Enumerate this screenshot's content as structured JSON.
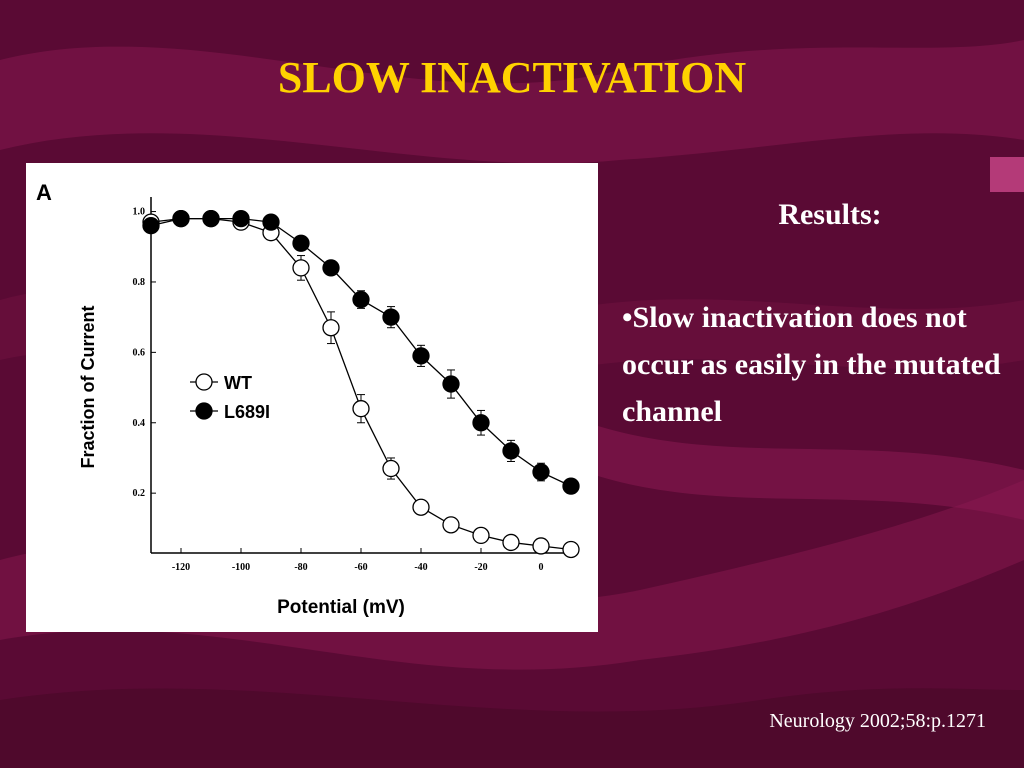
{
  "slide": {
    "title": "SLOW INACTIVATION",
    "results_heading": "Results:",
    "results_text": "•Slow inactivation does not occur as easily in the mutated channel",
    "citation": "Neurology 2002;58:p.1271"
  },
  "colors": {
    "background": "#5a0a34",
    "title": "#ffd200",
    "text": "#ffffff",
    "accent": "#b43a78"
  },
  "chart_data": {
    "type": "line",
    "panel_label": "A",
    "xlabel": "Potential (mV)",
    "ylabel": "Fraction of Current",
    "xlim": [
      -130,
      10
    ],
    "ylim": [
      0.03,
      1.03
    ],
    "xticks": [
      -120,
      -100,
      -80,
      -60,
      -40,
      -20,
      0
    ],
    "yticks": [
      1.0,
      0.8,
      0.6,
      0.4,
      0.2
    ],
    "xtick_labels": [
      "-120",
      "-100",
      "-80",
      "-60",
      "-40",
      "-20",
      "0"
    ],
    "ytick_labels": [
      "1.0",
      "0.8",
      "0.6",
      "0.4",
      "0.2"
    ],
    "legend_position": "center-left",
    "grid": false,
    "series": [
      {
        "name": "WT",
        "marker": "open-circle",
        "x": [
          -130,
          -120,
          -110,
          -100,
          -90,
          -80,
          -70,
          -60,
          -50,
          -40,
          -30,
          -20,
          -10,
          0,
          10
        ],
        "y": [
          0.97,
          0.98,
          0.98,
          0.97,
          0.94,
          0.84,
          0.67,
          0.44,
          0.27,
          0.16,
          0.11,
          0.08,
          0.06,
          0.05,
          0.04
        ],
        "err": [
          0.0,
          0.0,
          0.0,
          0.0,
          0.015,
          0.035,
          0.045,
          0.04,
          0.03,
          0.02,
          0.02,
          0.02,
          0.015,
          0.01,
          0.0
        ]
      },
      {
        "name": "L689I",
        "marker": "filled-circle",
        "x": [
          -130,
          -120,
          -110,
          -100,
          -90,
          -80,
          -70,
          -60,
          -50,
          -40,
          -30,
          -20,
          -10,
          0,
          10
        ],
        "y": [
          0.96,
          0.98,
          0.98,
          0.98,
          0.97,
          0.91,
          0.84,
          0.75,
          0.7,
          0.59,
          0.51,
          0.4,
          0.32,
          0.26,
          0.22
        ],
        "err": [
          0.0,
          0.0,
          0.0,
          0.0,
          0.0,
          0.02,
          0.02,
          0.025,
          0.03,
          0.03,
          0.04,
          0.035,
          0.03,
          0.025,
          0.02
        ]
      }
    ]
  }
}
